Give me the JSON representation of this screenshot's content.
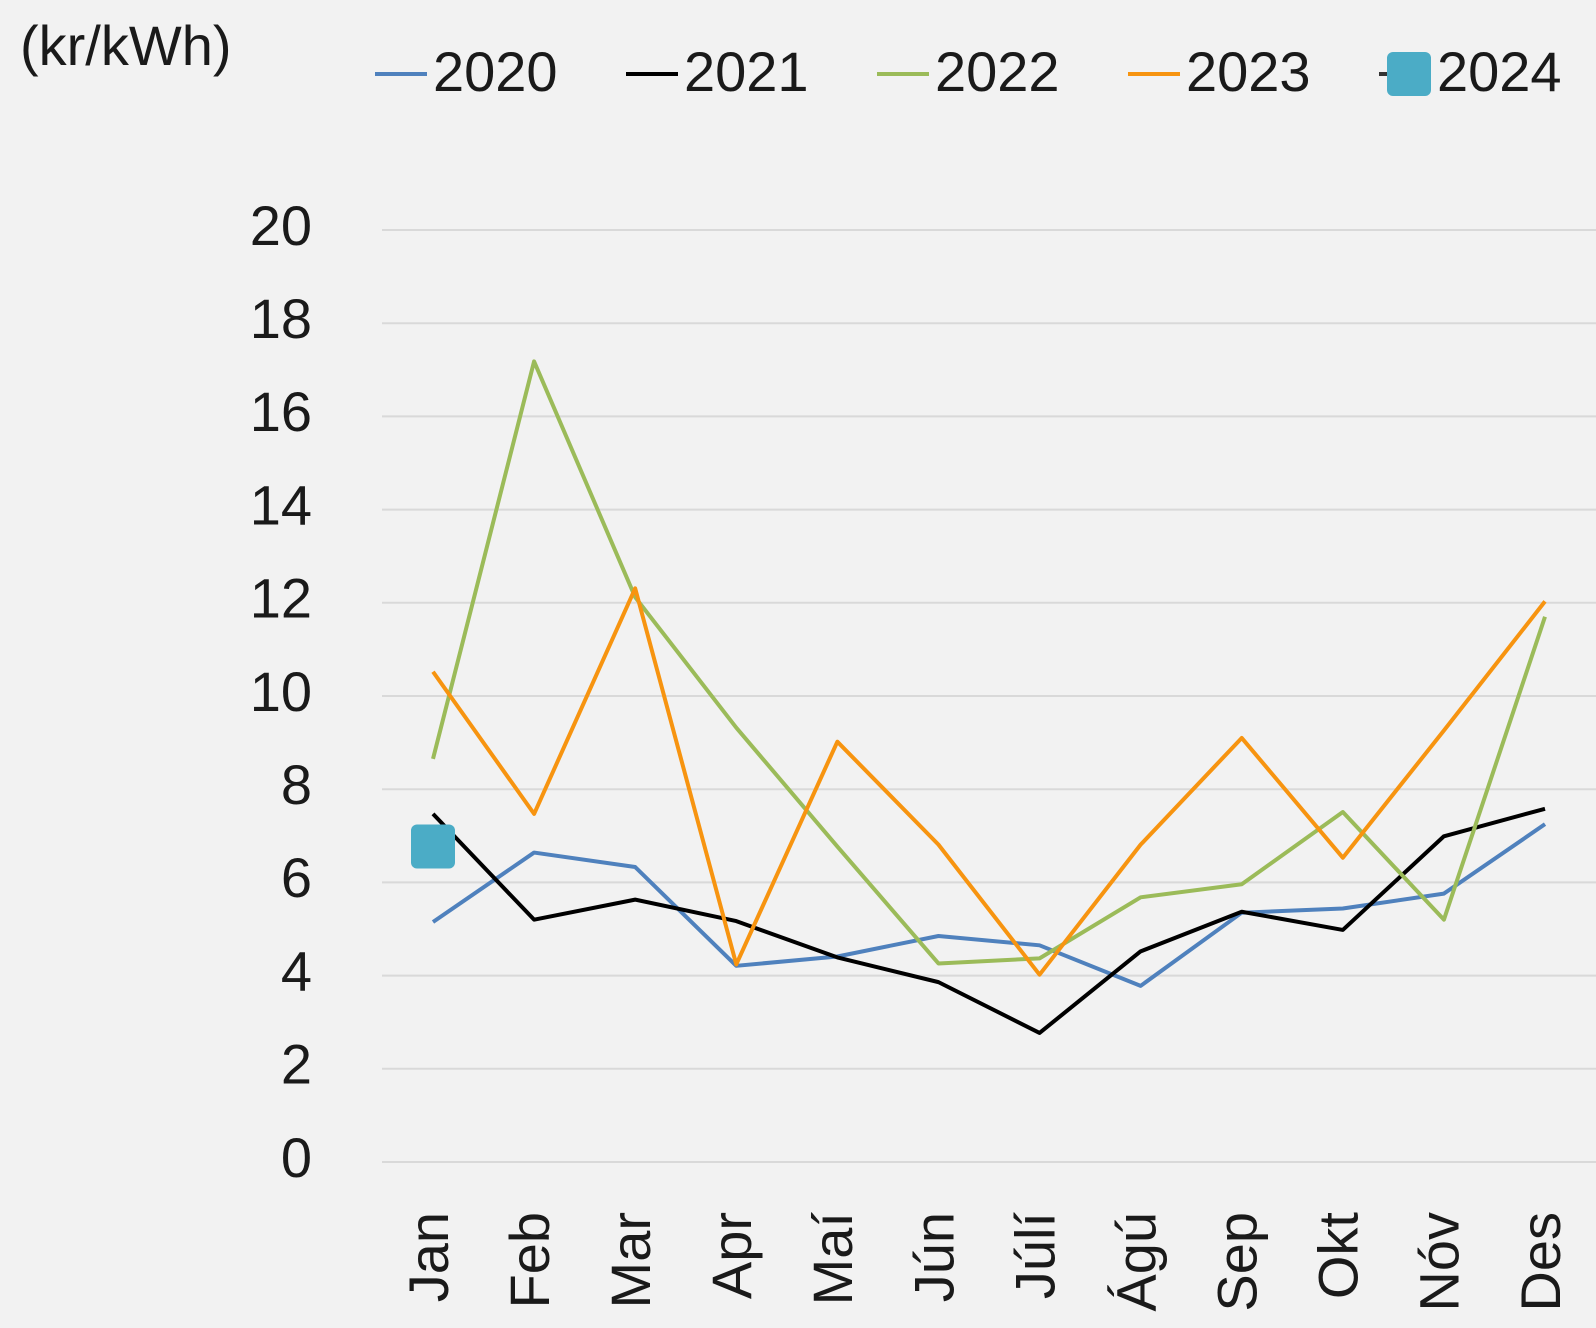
{
  "chart_data": {
    "type": "line",
    "y_unit_label": "(kr/kWh)",
    "categories": [
      "Jan",
      "Feb",
      "Mar",
      "Apr",
      "Maí",
      "Jún",
      "Júlí",
      "Ágú",
      "Sep",
      "Okt",
      "Nóv",
      "Des"
    ],
    "series": [
      {
        "name": "2020",
        "color": "#4f81bd",
        "values": [
          5.15,
          6.64,
          6.33,
          4.21,
          4.41,
          4.85,
          4.65,
          3.78,
          5.35,
          5.44,
          5.76,
          7.25
        ]
      },
      {
        "name": "2021",
        "color": "#000000",
        "values": [
          7.47,
          5.2,
          5.63,
          5.17,
          4.39,
          3.86,
          2.77,
          4.52,
          5.37,
          4.98,
          6.99,
          7.58
        ]
      },
      {
        "name": "2022",
        "color": "#9bbb59",
        "values": [
          8.65,
          17.18,
          12.12,
          9.32,
          6.77,
          4.26,
          4.37,
          5.68,
          5.96,
          7.51,
          5.2,
          11.7
        ]
      },
      {
        "name": "2023",
        "color": "#f79410",
        "values": [
          10.52,
          7.47,
          12.31,
          4.24,
          9.02,
          6.81,
          4.02,
          6.81,
          9.1,
          6.53,
          9.26,
          12.03
        ]
      },
      {
        "name": "2024",
        "color": "#4bacc6",
        "marker": "square",
        "values": [
          6.77,
          null,
          null,
          null,
          null,
          null,
          null,
          null,
          null,
          null,
          null,
          null
        ]
      }
    ],
    "ylim": [
      0,
      20
    ],
    "yticks": [
      0,
      2,
      4,
      6,
      8,
      10,
      12,
      14,
      16,
      18,
      20
    ],
    "grid": true
  }
}
